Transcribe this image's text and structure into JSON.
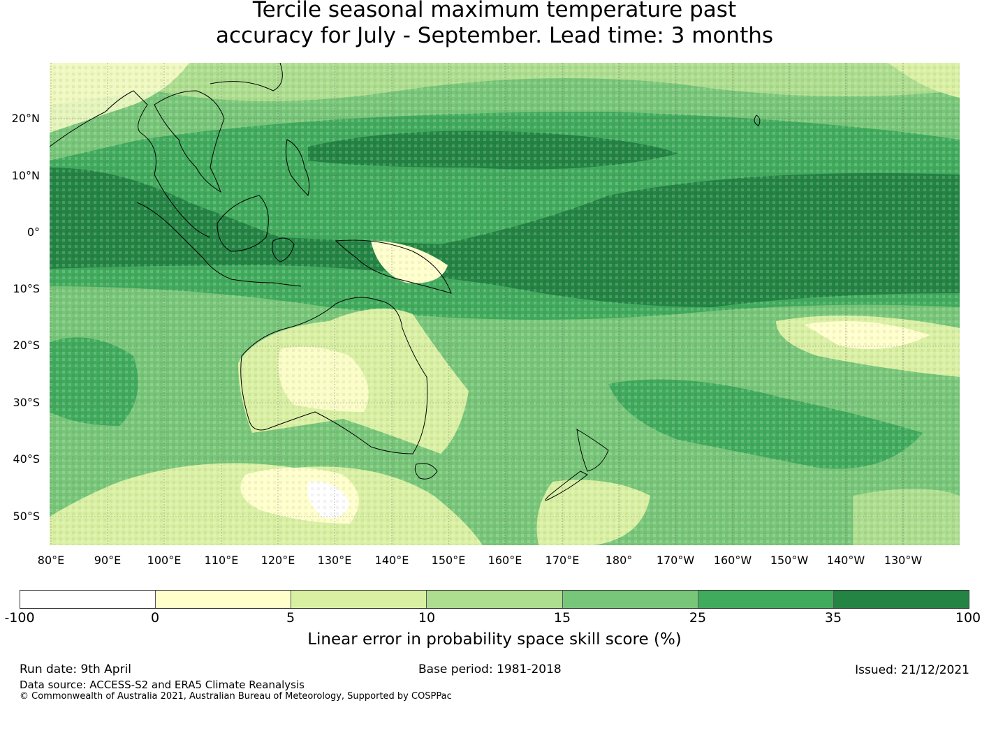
{
  "title": {
    "line1": "Tercile seasonal maximum temperature past",
    "line2": "accuracy for July - September. Lead time: 3 months"
  },
  "map": {
    "lat_labels": [
      "20°N",
      "10°N",
      "0°",
      "10°S",
      "20°S",
      "30°S",
      "40°S",
      "50°S"
    ],
    "lon_labels": [
      "80°E",
      "90°E",
      "100°E",
      "110°E",
      "120°E",
      "130°E",
      "140°E",
      "150°E",
      "160°E",
      "170°E",
      "180°",
      "170°W",
      "160°W",
      "150°W",
      "140°W",
      "130°W"
    ]
  },
  "colorbar": {
    "ticks": [
      "-100",
      "0",
      "5",
      "10",
      "15",
      "25",
      "35",
      "100"
    ],
    "colors": [
      "#ffffff",
      "#ffffcc",
      "#d9f0a3",
      "#addd8e",
      "#78c679",
      "#41ab5d",
      "#238443"
    ],
    "label": "Linear error in probability space skill score (%)"
  },
  "footer": {
    "run_date": "Run date: 9th April",
    "base_period": "Base period: 1981-2018",
    "issued": "Issued: 21/12/2021",
    "data_source": "Data source: ACCESS-S2 and ERA5 Climate Reanalysis",
    "copyright": "© Commonwealth of Australia 2021, Australian Bureau of Meteorology, Supported by COSPPac"
  }
}
